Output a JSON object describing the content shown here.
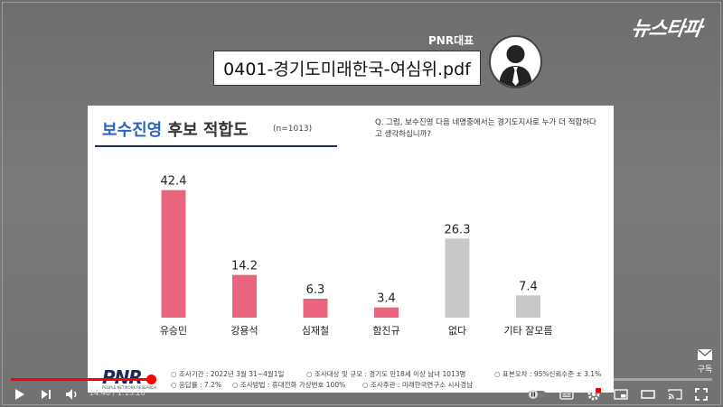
{
  "video": {
    "logo_text": "뉴스타파",
    "file_label": "0401-경기도미래한국-여심위.pdf",
    "speaker_name": "PNR대표",
    "subscribe_label": "구독",
    "time_current": "14:40",
    "time_separator": " / ",
    "time_total": "1:13:20",
    "progress_fraction": 0.2
  },
  "slide": {
    "title_accent": "보수진영",
    "title_rest": " 후보 적합도",
    "sample_size": "(n=1013)",
    "question": "Q. 그럼, 보수진영 다음 네명중에서는 경기도지사로 누가 더 적합하다고 생각하십니까?",
    "logo": "PNR",
    "logo_sub": "PEOPLE NETWORK RESEARCH",
    "notes": [
      "○ 조사기간 : 2022년 3월 31~4월1일",
      "○ 조사대상 및 규모 : 경기도 만18세 이상 남녀 1013명",
      "○ 표본오차 : 95%신뢰수준 ± 3.1%",
      "○ 응답률 : 7.2%",
      "○ 조사방법 : 휴대전화 가상번호 100%",
      "○ 조사주관 : 미래한국연구소 시사경남"
    ]
  },
  "chart_data": {
    "type": "bar",
    "categories": [
      "유승민",
      "강용석",
      "심재철",
      "함진규",
      "없다",
      "기타 잘모름"
    ],
    "values": [
      42.4,
      14.2,
      6.3,
      3.4,
      26.3,
      7.4
    ],
    "title": "",
    "xlabel": "",
    "ylabel": "",
    "ylim": [
      0,
      45
    ],
    "grid": false,
    "colors": [
      "#e8647f",
      "#e8647f",
      "#e8647f",
      "#e8647f",
      "#c8c8c8",
      "#c8c8c8"
    ]
  }
}
